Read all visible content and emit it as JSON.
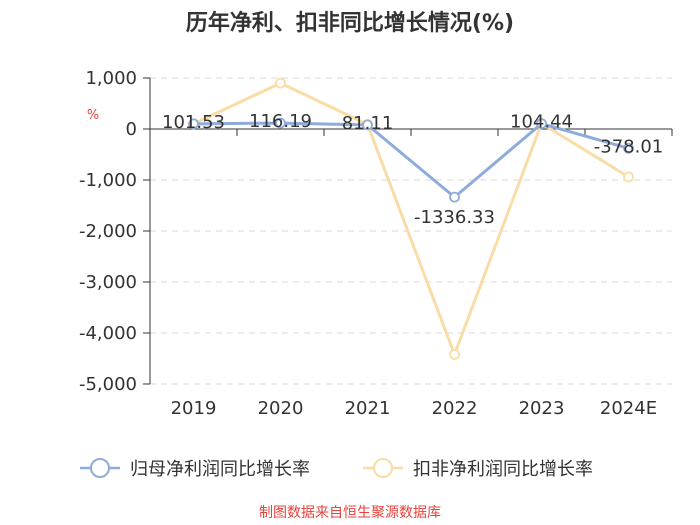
{
  "chart_data": {
    "type": "line",
    "title": "历年净利、扣非同比增长情况(%)",
    "ylabel": "%",
    "categories": [
      "2019",
      "2020",
      "2021",
      "2022",
      "2023",
      "2024E"
    ],
    "ylim": [
      -5000,
      1000
    ],
    "yticks": [
      1000,
      0,
      -1000,
      -2000,
      -3000,
      -4000,
      -5000
    ],
    "ytick_labels": [
      "1,000",
      "0",
      "-1,000",
      "-2,000",
      "-3,000",
      "-4,000",
      "-5,000"
    ],
    "grid": true,
    "legend_position": "bottom",
    "series": [
      {
        "name": "归母净利润同比增长率",
        "color": "#8fabdc",
        "values": [
          101.53,
          116.19,
          81.11,
          -1336.33,
          104.44,
          -378.01
        ],
        "labels": [
          "101.53",
          "116.19",
          "81.11",
          "-1336.33",
          "104.44",
          "-378.01"
        ]
      },
      {
        "name": "扣非净利润同比增长率",
        "color": "#f9dca6",
        "values": [
          100,
          900,
          90,
          -4420,
          110,
          -940
        ]
      }
    ]
  },
  "source": "制图数据来自恒生聚源数据库"
}
